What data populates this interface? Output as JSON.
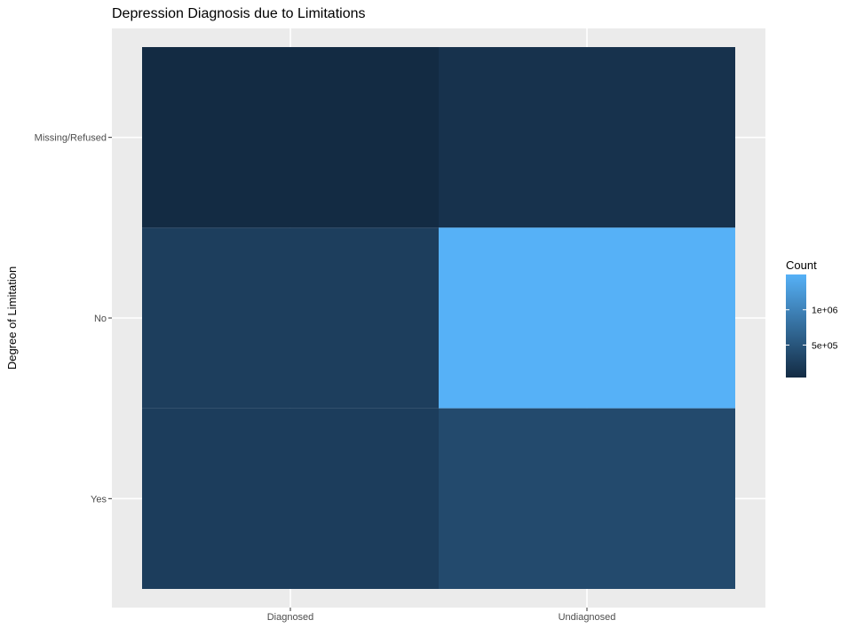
{
  "chart_data": {
    "type": "heatmap",
    "title": "Depression Diagnosis due to Limitations",
    "xlabel": "",
    "ylabel": "Degree of Limitation",
    "x_categories": [
      "Diagnosed",
      "Undiagnosed"
    ],
    "y_categories": [
      "Missing/Refused",
      "No",
      "Yes"
    ],
    "cells": [
      {
        "x": "Diagnosed",
        "y": "Missing/Refused",
        "value": 40000
      },
      {
        "x": "Undiagnosed",
        "y": "Missing/Refused",
        "value": 120000
      },
      {
        "x": "Diagnosed",
        "y": "No",
        "value": 250000
      },
      {
        "x": "Undiagnosed",
        "y": "No",
        "value": 1500000
      },
      {
        "x": "Diagnosed",
        "y": "Yes",
        "value": 240000
      },
      {
        "x": "Undiagnosed",
        "y": "Yes",
        "value": 380000
      }
    ],
    "legend": {
      "title": "Count",
      "breaks": [
        500000,
        1000000
      ],
      "labels": [
        "5e+05",
        "1e+06"
      ],
      "range": [
        40000,
        1500000
      ],
      "low_color": "#132B43",
      "high_color": "#56B1F7",
      "placement": "right"
    },
    "grid": true,
    "panel_color": "#EBEBEB",
    "gridline_color": "#FFFFFF"
  }
}
